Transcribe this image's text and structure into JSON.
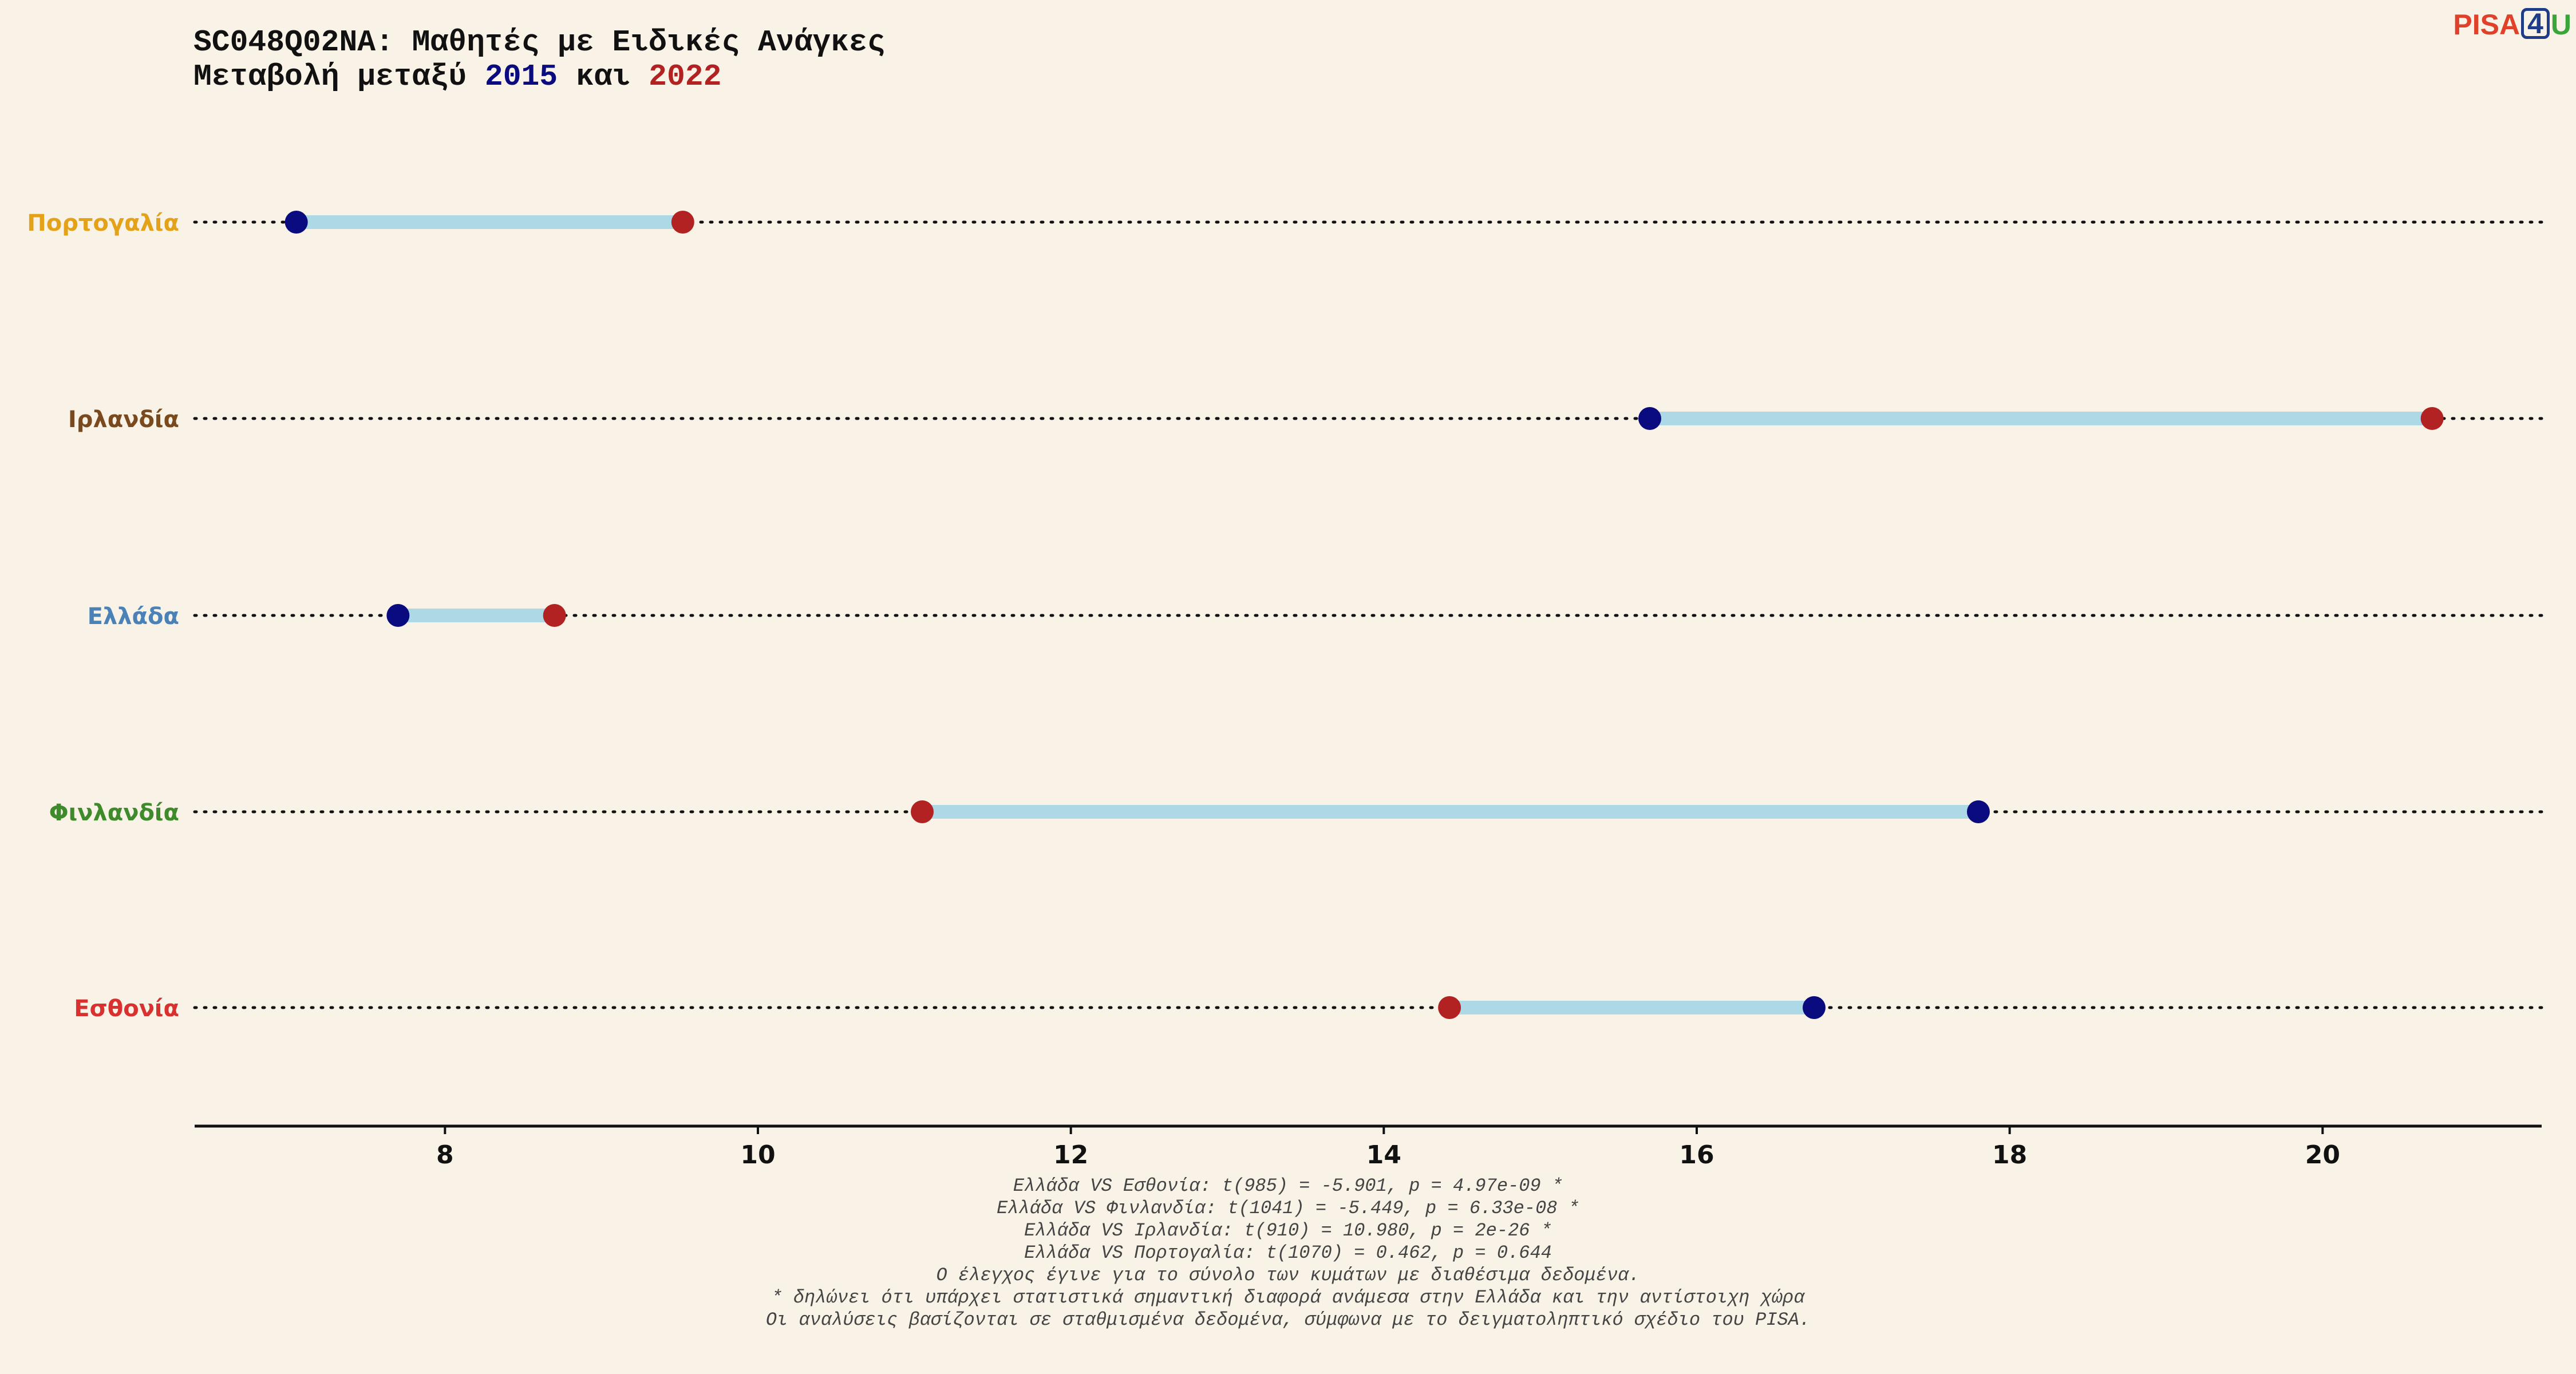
{
  "title": {
    "line1": "SC048Q02NA: Μαθητές με Ειδικές Ανάγκες",
    "line2_prefix": "Μεταβολή μεταξύ ",
    "year_a": "2015",
    "line2_mid": " και ",
    "year_b": "2022"
  },
  "logo": {
    "part1": "PISA",
    "part2": "4",
    "part3": "U",
    "color1": "#E0412B",
    "color2": "#1F3C88",
    "color3": "#3AA63A"
  },
  "colors": {
    "background": "#F8F3E6",
    "year_2015": "#0B0B80",
    "year_2022": "#B22222",
    "connector": "#ADD8E6",
    "axis": "#111111"
  },
  "chart_data": {
    "type": "dumbbell",
    "categories": [
      "Πορτογαλία",
      "Ιρλανδία",
      "Ελλάδα",
      "Φινλανδία",
      "Εσθονία"
    ],
    "category_colors": [
      "#E3A21A",
      "#7A4A1E",
      "#4A82B8",
      "#3F8A2A",
      "#D93030"
    ],
    "series": [
      {
        "name": "2015",
        "values": [
          7.05,
          15.7,
          7.7,
          17.8,
          16.75
        ]
      },
      {
        "name": "2022",
        "values": [
          9.52,
          20.7,
          8.7,
          11.05,
          14.42
        ]
      }
    ],
    "xlim": [
      6.4,
      21.4
    ],
    "xticks": [
      "8",
      "10",
      "12",
      "14",
      "16",
      "18",
      "20"
    ],
    "xlabel": "",
    "ylabel": "",
    "grid": false
  },
  "footnotes": [
    "Ελλάδα VS Εσθονία: t(985) = -5.901, p = 4.97e-09 *",
    "Ελλάδα VS Φινλανδία: t(1041) = -5.449, p = 6.33e-08 *",
    "Ελλάδα VS Ιρλανδία: t(910) = 10.980, p = 2e-26 *",
    "Ελλάδα VS Πορτογαλία: t(1070) = 0.462, p = 0.644",
    "Ο έλεγχος έγινε για το σύνολο των κυμάτων με διαθέσιμα δεδομένα.",
    "* δηλώνει ότι υπάρχει στατιστικά σημαντική διαφορά ανάμεσα στην Ελλάδα και την αντίστοιχη χώρα",
    "Οι αναλύσεις βασίζονται σε σταθμισμένα δεδομένα, σύμφωνα με το δειγματοληπτικό σχέδιο του PISA."
  ]
}
